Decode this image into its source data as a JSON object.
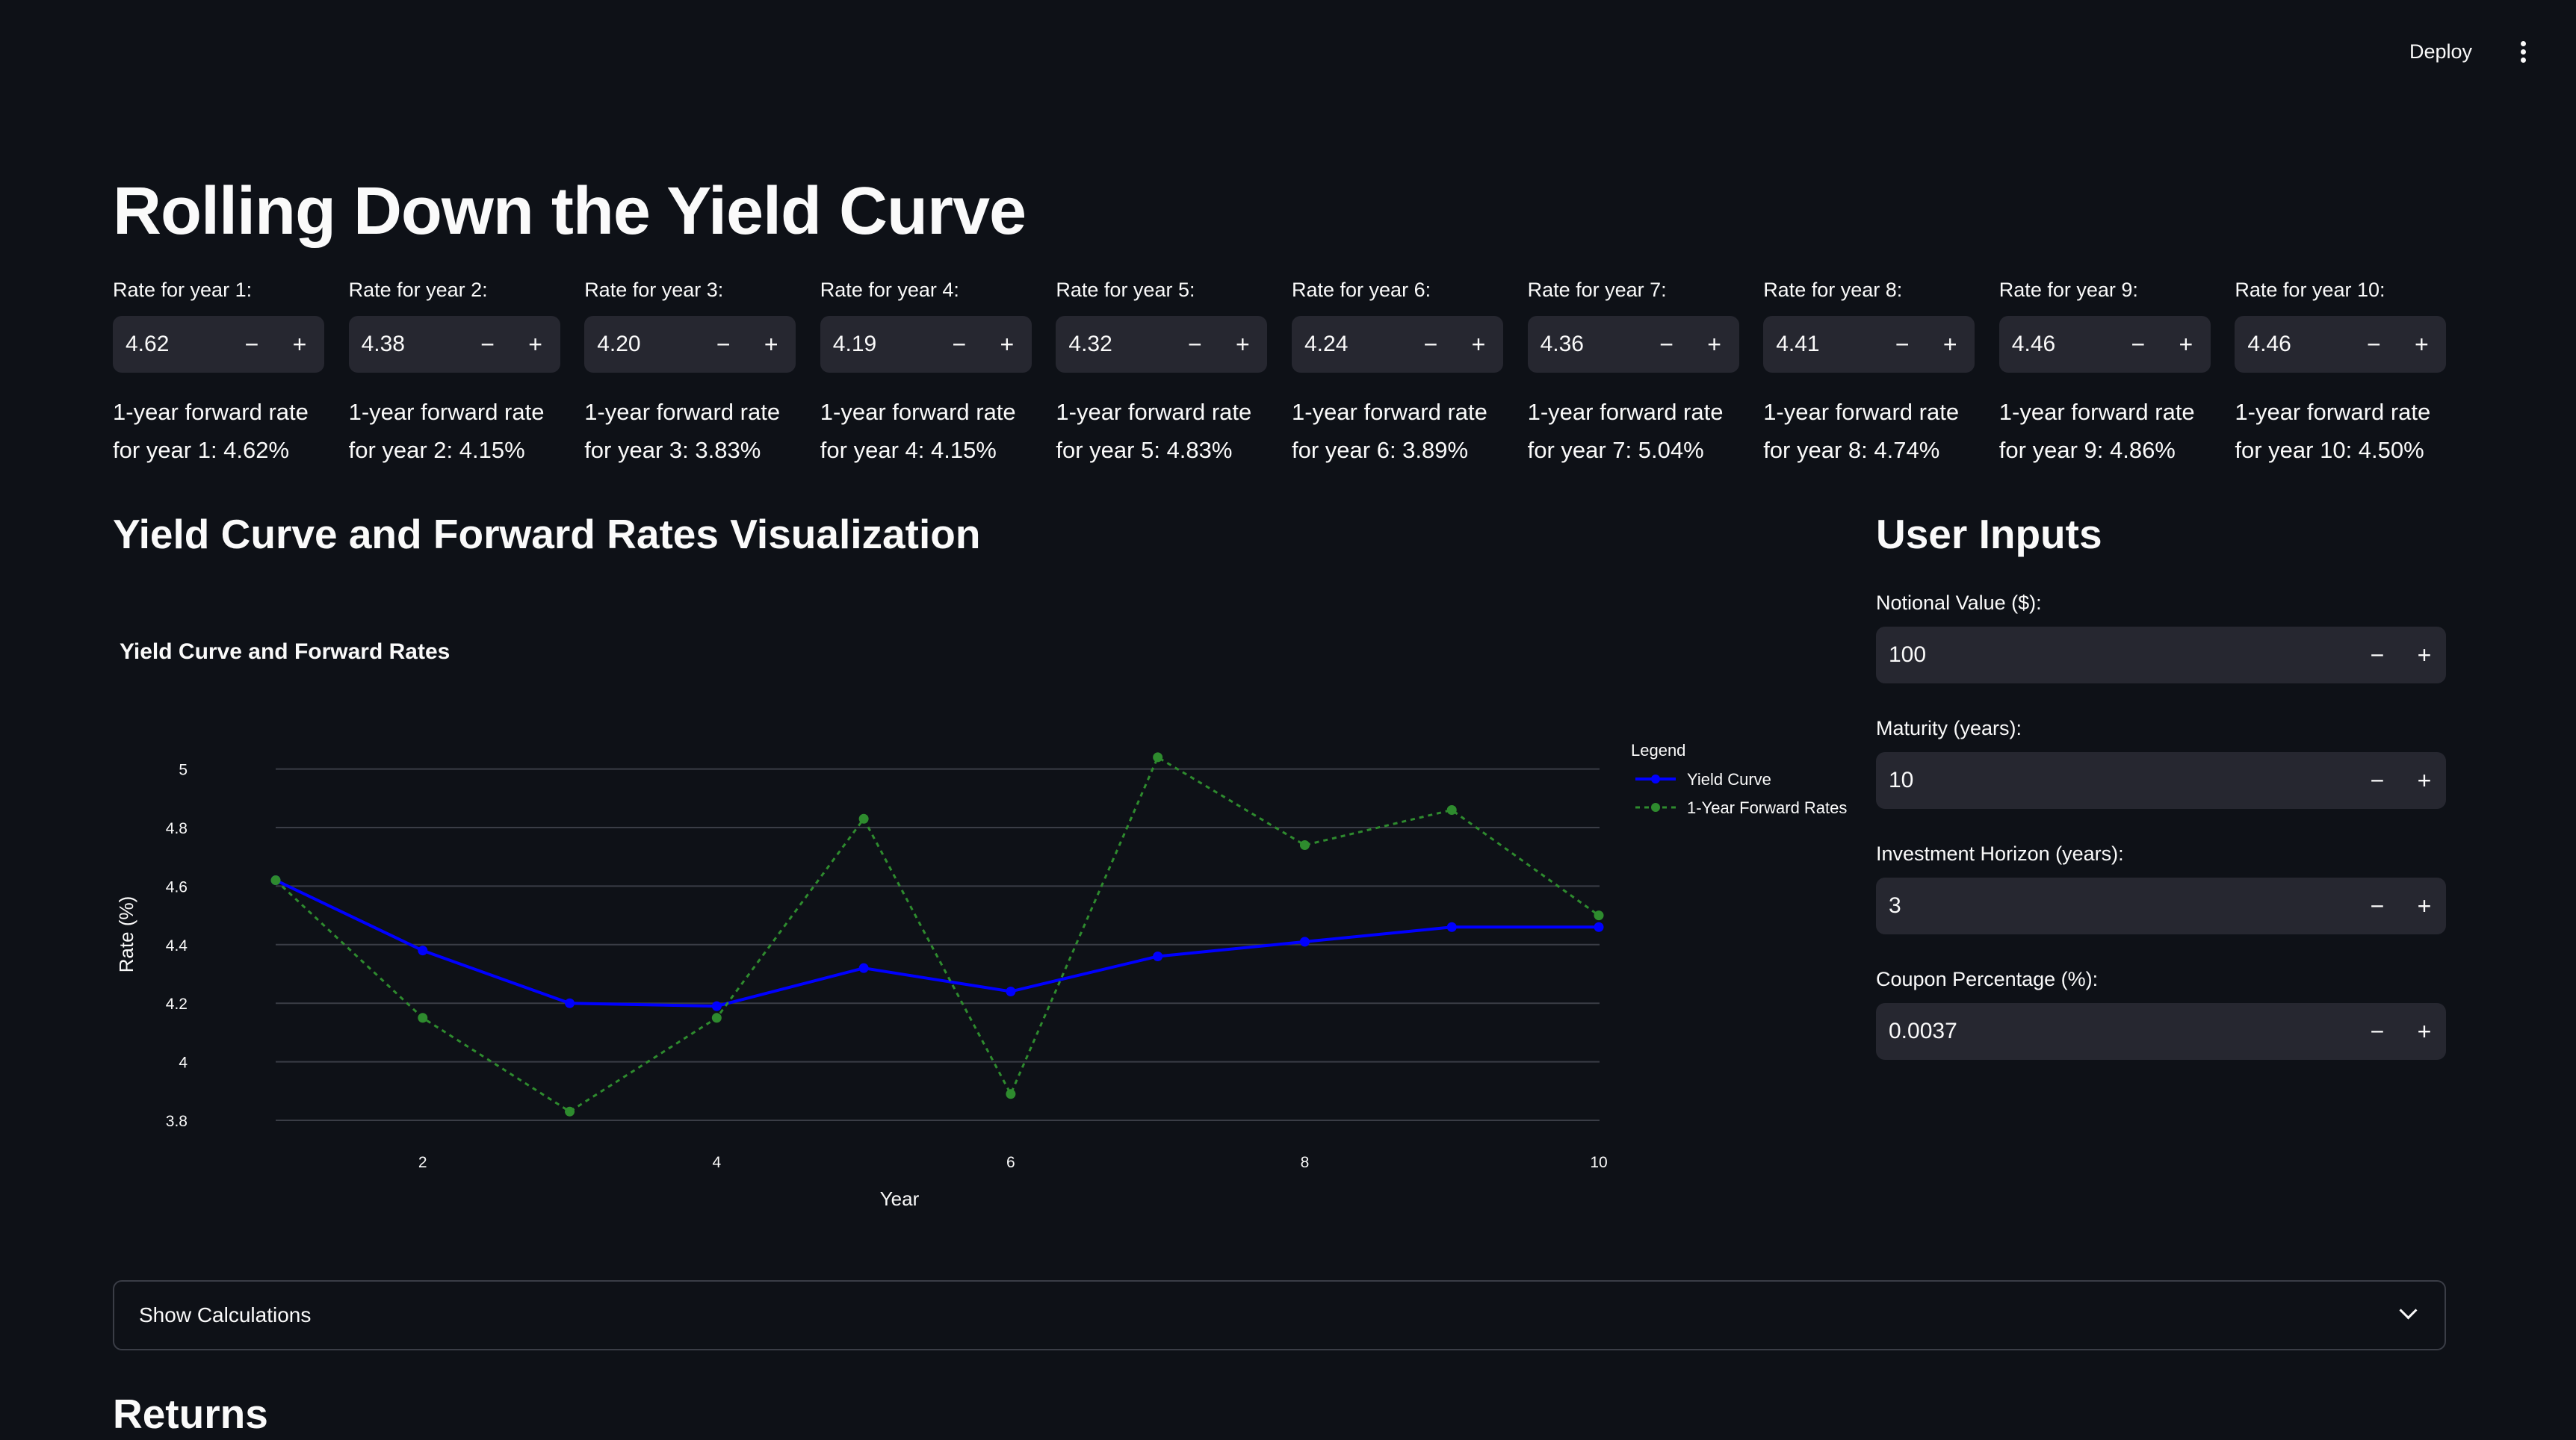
{
  "header": {
    "deploy_label": "Deploy",
    "menu_icon": "kebab-menu-icon"
  },
  "title": "Rolling Down the Yield Curve",
  "rates": [
    {
      "label": "Rate for year 1:",
      "value": "4.62",
      "forward_text": "1-year forward rate for year 1: 4.62%"
    },
    {
      "label": "Rate for year 2:",
      "value": "4.38",
      "forward_text": "1-year forward rate for year 2: 4.15%"
    },
    {
      "label": "Rate for year 3:",
      "value": "4.20",
      "forward_text": "1-year forward rate for year 3: 3.83%"
    },
    {
      "label": "Rate for year 4:",
      "value": "4.19",
      "forward_text": "1-year forward rate for year 4: 4.15%"
    },
    {
      "label": "Rate for year 5:",
      "value": "4.32",
      "forward_text": "1-year forward rate for year 5: 4.83%"
    },
    {
      "label": "Rate for year 6:",
      "value": "4.24",
      "forward_text": "1-year forward rate for year 6: 3.89%"
    },
    {
      "label": "Rate for year 7:",
      "value": "4.36",
      "forward_text": "1-year forward rate for year 7: 5.04%"
    },
    {
      "label": "Rate for year 8:",
      "value": "4.41",
      "forward_text": "1-year forward rate for year 8: 4.74%"
    },
    {
      "label": "Rate for year 9:",
      "value": "4.46",
      "forward_text": "1-year forward rate for year 9: 4.86%"
    },
    {
      "label": "Rate for year 10:",
      "value": "4.46",
      "forward_text": "1-year forward rate for year 10: 4.50%"
    }
  ],
  "stepper": {
    "minus": "−",
    "plus": "+"
  },
  "viz_heading": "Yield Curve and Forward Rates Visualization",
  "user_inputs": {
    "heading": "User Inputs",
    "fields": [
      {
        "label": "Notional Value ($):",
        "value": "100"
      },
      {
        "label": "Maturity (years):",
        "value": "10"
      },
      {
        "label": "Investment Horizon (years):",
        "value": "3"
      },
      {
        "label": "Coupon Percentage (%):",
        "value": "0.0037"
      }
    ]
  },
  "expander": {
    "label": "Show Calculations"
  },
  "returns_heading": "Returns",
  "colors": {
    "background": "#0e1117",
    "input_bg": "#262730",
    "yield_curve": "#0000ff",
    "forward_rates": "#2e8b2e"
  },
  "chart_data": {
    "type": "line",
    "title": "Yield Curve and Forward Rates",
    "xlabel": "Year",
    "ylabel": "Rate (%)",
    "x": [
      1,
      2,
      3,
      4,
      5,
      6,
      7,
      8,
      9,
      10
    ],
    "xlim": [
      1,
      10
    ],
    "ylim": [
      3.8,
      5.05
    ],
    "xticks": [
      2,
      4,
      6,
      8,
      10
    ],
    "yticks": [
      3.8,
      4,
      4.2,
      4.4,
      4.6,
      4.8,
      5
    ],
    "grid": true,
    "legend_title": "Legend",
    "legend_position": "right",
    "series": [
      {
        "name": "Yield Curve",
        "values": [
          4.62,
          4.38,
          4.2,
          4.19,
          4.32,
          4.24,
          4.36,
          4.41,
          4.46,
          4.46
        ],
        "color": "#0000ff",
        "style": "solid"
      },
      {
        "name": "1-Year Forward Rates",
        "values": [
          4.62,
          4.15,
          3.83,
          4.15,
          4.83,
          3.89,
          5.04,
          4.74,
          4.86,
          4.5
        ],
        "color": "#2e8b2e",
        "style": "dotted"
      }
    ]
  }
}
